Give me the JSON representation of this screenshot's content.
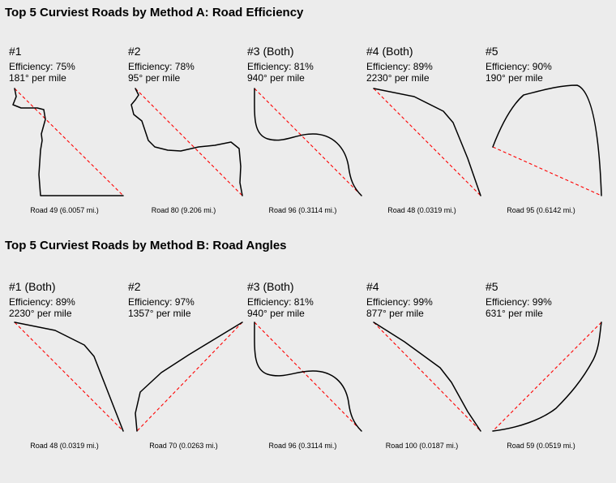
{
  "sections": [
    {
      "title": "Top 5 Curviest Roads by Method A: Road Efficiency",
      "panels": [
        {
          "rank": "#1",
          "efficiency": "Efficiency: 75%",
          "degrees": "181° per mile",
          "road": "Road 49 (6.0057 mi.)"
        },
        {
          "rank": "#2",
          "efficiency": "Efficiency: 78%",
          "degrees": "95° per mile",
          "road": "Road 80 (9.206 mi.)"
        },
        {
          "rank": "#3 (Both)",
          "efficiency": "Efficiency: 81%",
          "degrees": "940° per mile",
          "road": "Road 96 (0.3114 mi.)"
        },
        {
          "rank": "#4 (Both)",
          "efficiency": "Efficiency: 89%",
          "degrees": "2230° per mile",
          "road": "Road 48 (0.0319 mi.)"
        },
        {
          "rank": "#5",
          "efficiency": "Efficiency: 90%",
          "degrees": "190° per mile",
          "road": "Road 95 (0.6142 mi.)"
        }
      ]
    },
    {
      "title": "Top 5 Curviest Roads by Method B: Road Angles",
      "panels": [
        {
          "rank": "#1 (Both)",
          "efficiency": "Efficiency: 89%",
          "degrees": "2230° per mile",
          "road": "Road 48 (0.0319 mi.)"
        },
        {
          "rank": "#2",
          "efficiency": "Efficiency: 97%",
          "degrees": "1357° per mile",
          "road": "Road 70 (0.0263 mi.)"
        },
        {
          "rank": "#3 (Both)",
          "efficiency": "Efficiency: 81%",
          "degrees": "940° per mile",
          "road": "Road 96 (0.3114 mi.)"
        },
        {
          "rank": "#4",
          "efficiency": "Efficiency: 99%",
          "degrees": "877° per mile",
          "road": "Road 100 (0.0187 mi.)"
        },
        {
          "rank": "#5",
          "efficiency": "Efficiency: 99%",
          "degrees": "631° per mile",
          "road": "Road 59 (0.0519 mi.)"
        }
      ]
    }
  ],
  "colors": {
    "road": "#000000",
    "chord": "#ff0000",
    "background": "#ececec"
  }
}
